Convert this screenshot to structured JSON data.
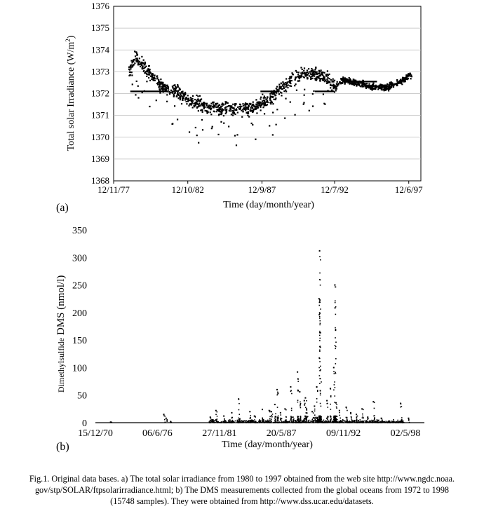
{
  "chart_data": [
    {
      "type": "scatter",
      "panel_label": "(a)",
      "ylabel_main": "Total solar Irradiance (W/m",
      "ylabel_sup": "2",
      "ylabel_end": ")",
      "xlabel": "Time (day/month/year)",
      "ylim": [
        1368,
        1376
      ],
      "yticks": [
        "1368",
        "1369",
        "1370",
        "1371",
        "1372",
        "1373",
        "1374",
        "1375",
        "1376"
      ],
      "xlim": [
        1977.9,
        1998.2
      ],
      "xticks": [
        {
          "label": "12/11/77",
          "x": 1977.9
        },
        {
          "label": "12/10/82",
          "x": 1982.8
        },
        {
          "label": "12/9/87",
          "x": 1987.7
        },
        {
          "label": "12/7/92",
          "x": 1992.5
        },
        {
          "label": "12/6/97",
          "x": 1997.4
        }
      ],
      "series": [
        {
          "name": "Total solar irradiance",
          "x_range": [
            1978.9,
            1997.6
          ],
          "trend": [
            [
              1978.9,
              1372.9
            ],
            [
              1979.3,
              1373.7
            ],
            [
              1979.6,
              1373.4
            ],
            [
              1980.2,
              1373.0
            ],
            [
              1981.0,
              1372.4
            ],
            [
              1982.0,
              1372.1
            ],
            [
              1983.0,
              1371.7
            ],
            [
              1984.0,
              1371.4
            ],
            [
              1985.0,
              1371.3
            ],
            [
              1986.0,
              1371.3
            ],
            [
              1987.0,
              1371.3
            ],
            [
              1988.0,
              1371.7
            ],
            [
              1989.0,
              1372.3
            ],
            [
              1990.0,
              1372.8
            ],
            [
              1991.0,
              1372.9
            ],
            [
              1991.8,
              1372.8
            ],
            [
              1992.5,
              1372.3
            ],
            [
              1993.0,
              1372.6
            ],
            [
              1994.0,
              1372.5
            ],
            [
              1995.0,
              1372.3
            ],
            [
              1996.0,
              1372.3
            ],
            [
              1997.0,
              1372.6
            ],
            [
              1997.6,
              1372.9
            ]
          ]
        }
      ]
    },
    {
      "type": "scatter",
      "panel_label": "(b)",
      "ylabel_prefix": "Dimethylsulfide",
      "ylabel": "DMS (nmol/l)",
      "xlabel": "Time (day/month/year)",
      "ylim": [
        0,
        350
      ],
      "yticks": [
        "0",
        "50",
        "100",
        "150",
        "200",
        "250",
        "300",
        "350"
      ],
      "xlim": [
        1970.96,
        2000.0
      ],
      "xticks": [
        {
          "label": "15/12/70",
          "x": 1970.96
        },
        {
          "label": "06/6/76",
          "x": 1976.43
        },
        {
          "label": "27/11/81",
          "x": 1981.91
        },
        {
          "label": "20/5/87",
          "x": 1987.38
        },
        {
          "label": "09/11/92",
          "x": 1992.86
        },
        {
          "label": "02/5/98",
          "x": 1998.33
        }
      ],
      "series": [
        {
          "name": "DMS measurements",
          "samples": 15748,
          "peaks": [
            [
              1972.3,
              1
            ],
            [
              1977.0,
              15
            ],
            [
              1977.2,
              8
            ],
            [
              1977.6,
              2
            ],
            [
              1981.1,
              10
            ],
            [
              1981.3,
              5
            ],
            [
              1981.6,
              22
            ],
            [
              1982.3,
              12
            ],
            [
              1983.0,
              18
            ],
            [
              1983.6,
              43
            ],
            [
              1984.6,
              20
            ],
            [
              1985.0,
              12
            ],
            [
              1985.7,
              24
            ],
            [
              1986.3,
              22
            ],
            [
              1986.5,
              20
            ],
            [
              1986.8,
              33
            ],
            [
              1987.0,
              60
            ],
            [
              1987.3,
              18
            ],
            [
              1987.7,
              25
            ],
            [
              1988.2,
              65
            ],
            [
              1988.4,
              10
            ],
            [
              1988.8,
              92
            ],
            [
              1989.0,
              56
            ],
            [
              1989.4,
              40
            ],
            [
              1989.5,
              45
            ],
            [
              1989.6,
              25
            ],
            [
              1990.1,
              20
            ],
            [
              1990.3,
              30
            ],
            [
              1990.5,
              65
            ],
            [
              1990.7,
              225
            ],
            [
              1990.75,
              312
            ],
            [
              1990.8,
              80
            ],
            [
              1991.4,
              40
            ],
            [
              1991.7,
              62
            ],
            [
              1992.0,
              100
            ],
            [
              1992.1,
              250
            ],
            [
              1992.2,
              36
            ],
            [
              1992.5,
              22
            ],
            [
              1993.1,
              28
            ],
            [
              1993.5,
              18
            ],
            [
              1994.0,
              15
            ],
            [
              1994.5,
              25
            ],
            [
              1995.0,
              10
            ],
            [
              1995.5,
              38
            ],
            [
              1996.2,
              8
            ],
            [
              1997.9,
              35
            ],
            [
              1998.0,
              5
            ],
            [
              1998.6,
              8
            ]
          ]
        }
      ]
    }
  ],
  "caption": {
    "line1": "Fig.1. Original data bases. a) The total solar irradiance from 1980 to 1997 obtained from the web site http://www.ngdc.noaa.",
    "line2": "gov/stp/SOLAR/ftpsolarirradiance.html; b) The DMS measurements collected from the global oceans from 1972 to 1998",
    "line3": "(15748 samples). They were obtained from http://www.dss.ucar.edu/datasets."
  }
}
